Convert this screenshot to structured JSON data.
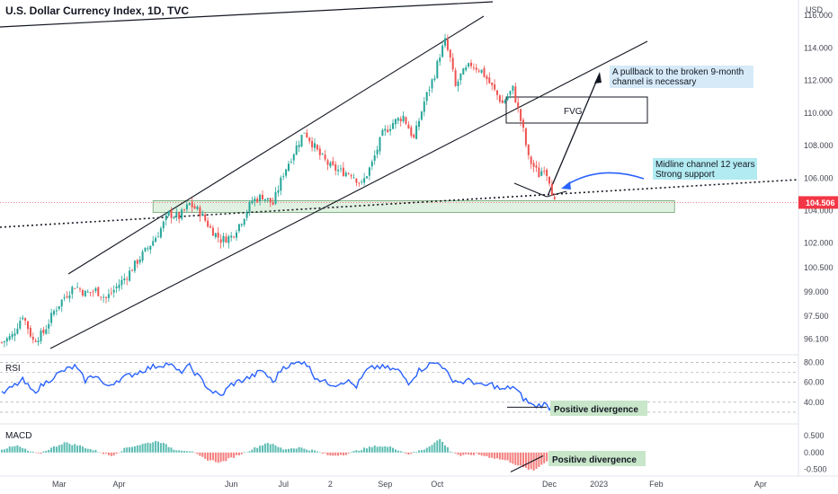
{
  "chart_data": {
    "type": "candlestick",
    "title": "U.S. Dollar Currency Index, 1D, TVC",
    "currency": "USD",
    "price_axis": {
      "ticks": [
        "116.000",
        "114.000",
        "112.000",
        "110.000",
        "108.000",
        "106.000",
        "104.000",
        "102.000",
        "100.500",
        "99.000",
        "97.500",
        "96.100"
      ],
      "ylim": [
        95.3,
        116.4
      ]
    },
    "current_price": "104.506",
    "time_axis": {
      "ticks": [
        {
          "label": "Mar",
          "slot": 22
        },
        {
          "label": "Apr",
          "slot": 45
        },
        {
          "label": "Jun",
          "slot": 88
        },
        {
          "label": "Jul",
          "slot": 108
        },
        {
          "label": "2",
          "slot": 126
        },
        {
          "label": "Sep",
          "slot": 147
        },
        {
          "label": "Oct",
          "slot": 167
        },
        {
          "label": "Dec",
          "slot": 210
        },
        {
          "label": "2023",
          "slot": 229
        },
        {
          "label": "Feb",
          "slot": 251
        },
        {
          "label": "Apr",
          "slot": 291
        }
      ]
    },
    "price_anchors": [
      [
        0,
        95.9
      ],
      [
        4,
        96.3
      ],
      [
        8,
        97.6
      ],
      [
        12,
        96.0
      ],
      [
        16,
        96.5
      ],
      [
        20,
        97.8
      ],
      [
        24,
        98.7
      ],
      [
        28,
        99.4
      ],
      [
        32,
        98.9
      ],
      [
        36,
        99.1
      ],
      [
        40,
        98.6
      ],
      [
        44,
        99.3
      ],
      [
        48,
        100.0
      ],
      [
        52,
        100.9
      ],
      [
        56,
        101.7
      ],
      [
        60,
        102.6
      ],
      [
        64,
        103.8
      ],
      [
        68,
        103.6
      ],
      [
        72,
        104.4
      ],
      [
        76,
        103.9
      ],
      [
        80,
        102.9
      ],
      [
        84,
        102.2
      ],
      [
        88,
        102.4
      ],
      [
        92,
        103.4
      ],
      [
        96,
        104.6
      ],
      [
        100,
        104.9
      ],
      [
        104,
        104.4
      ],
      [
        108,
        106.3
      ],
      [
        112,
        107.6
      ],
      [
        116,
        108.9
      ],
      [
        118,
        108.4
      ],
      [
        122,
        107.4
      ],
      [
        126,
        106.7
      ],
      [
        130,
        106.4
      ],
      [
        134,
        106.3
      ],
      [
        138,
        105.6
      ],
      [
        142,
        106.9
      ],
      [
        146,
        108.7
      ],
      [
        150,
        109.4
      ],
      [
        154,
        109.8
      ],
      [
        158,
        108.4
      ],
      [
        162,
        110.7
      ],
      [
        166,
        112.4
      ],
      [
        168,
        113.6
      ],
      [
        170,
        114.4
      ],
      [
        172,
        113.3
      ],
      [
        174,
        111.6
      ],
      [
        176,
        112.3
      ],
      [
        180,
        113.0
      ],
      [
        184,
        112.6
      ],
      [
        188,
        111.6
      ],
      [
        192,
        110.6
      ],
      [
        196,
        111.5
      ],
      [
        198,
        110.2
      ],
      [
        200,
        108.9
      ],
      [
        202,
        107.2
      ],
      [
        206,
        106.2
      ],
      [
        208,
        106.7
      ],
      [
        210,
        105.9
      ],
      [
        212,
        104.5
      ]
    ],
    "rsi": {
      "label": "RSI",
      "ticks": [
        "80.00",
        "60.00",
        "40.00"
      ],
      "ylim": [
        20,
        85
      ],
      "anchors": [
        [
          0,
          48
        ],
        [
          4,
          55
        ],
        [
          8,
          62
        ],
        [
          12,
          50
        ],
        [
          16,
          58
        ],
        [
          20,
          66
        ],
        [
          24,
          72
        ],
        [
          28,
          76
        ],
        [
          32,
          62
        ],
        [
          36,
          68
        ],
        [
          40,
          55
        ],
        [
          44,
          62
        ],
        [
          48,
          66
        ],
        [
          52,
          70
        ],
        [
          56,
          74
        ],
        [
          60,
          77
        ],
        [
          64,
          79
        ],
        [
          68,
          70
        ],
        [
          72,
          76
        ],
        [
          76,
          64
        ],
        [
          80,
          52
        ],
        [
          84,
          46
        ],
        [
          88,
          58
        ],
        [
          92,
          62
        ],
        [
          96,
          66
        ],
        [
          100,
          72
        ],
        [
          104,
          60
        ],
        [
          108,
          76
        ],
        [
          112,
          78
        ],
        [
          116,
          82
        ],
        [
          120,
          66
        ],
        [
          124,
          60
        ],
        [
          128,
          58
        ],
        [
          132,
          62
        ],
        [
          136,
          56
        ],
        [
          140,
          72
        ],
        [
          144,
          76
        ],
        [
          148,
          74
        ],
        [
          152,
          72
        ],
        [
          156,
          60
        ],
        [
          160,
          72
        ],
        [
          164,
          78
        ],
        [
          168,
          80
        ],
        [
          172,
          64
        ],
        [
          176,
          60
        ],
        [
          180,
          62
        ],
        [
          184,
          56
        ],
        [
          188,
          58
        ],
        [
          192,
          52
        ],
        [
          196,
          56
        ],
        [
          200,
          44
        ],
        [
          204,
          36
        ],
        [
          208,
          38
        ],
        [
          210,
          35
        ],
        [
          212,
          37
        ]
      ]
    },
    "macd": {
      "label": "MACD",
      "ticks": [
        "0.500",
        "0.000",
        "-0.500"
      ],
      "ylim": [
        -0.65,
        0.8
      ],
      "anchors": [
        [
          0,
          0.1
        ],
        [
          6,
          0.2
        ],
        [
          10,
          0.05
        ],
        [
          14,
          -0.05
        ],
        [
          18,
          0.1
        ],
        [
          24,
          0.3
        ],
        [
          30,
          0.2
        ],
        [
          36,
          0.05
        ],
        [
          42,
          -0.1
        ],
        [
          48,
          0.15
        ],
        [
          54,
          0.25
        ],
        [
          60,
          0.35
        ],
        [
          66,
          0.1
        ],
        [
          72,
          0.05
        ],
        [
          78,
          -0.2
        ],
        [
          84,
          -0.3
        ],
        [
          90,
          -0.1
        ],
        [
          96,
          0.1
        ],
        [
          102,
          0.3
        ],
        [
          108,
          0.1
        ],
        [
          114,
          0.15
        ],
        [
          120,
          0.05
        ],
        [
          126,
          -0.1
        ],
        [
          132,
          -0.05
        ],
        [
          138,
          0.1
        ],
        [
          144,
          0.2
        ],
        [
          150,
          0.15
        ],
        [
          156,
          -0.05
        ],
        [
          162,
          0.1
        ],
        [
          168,
          0.4
        ],
        [
          172,
          0.05
        ],
        [
          176,
          -0.1
        ],
        [
          182,
          -0.05
        ],
        [
          188,
          -0.15
        ],
        [
          194,
          -0.25
        ],
        [
          200,
          -0.45
        ],
        [
          204,
          -0.55
        ],
        [
          208,
          -0.3
        ],
        [
          212,
          -0.1
        ]
      ]
    },
    "annotations": {
      "fvg": "FVG",
      "pullback": "A pullback to the broken 9-month\n channel is necessary",
      "midline": "Midline channel 12 years\nStrong support",
      "divergence_rsi": "Positive divergence",
      "divergence_macd": "Positive divergence"
    },
    "colors": {
      "up": "#26a69a",
      "down": "#ef5350",
      "rsi_line": "#2962ff",
      "support_zone": "#c8e6c9",
      "label_bg_blue": "#d6eaf8",
      "label_bg_cyan": "#b2ebf2",
      "label_bg_green": "#c8e6c9",
      "price_tag": "#f23645"
    }
  }
}
